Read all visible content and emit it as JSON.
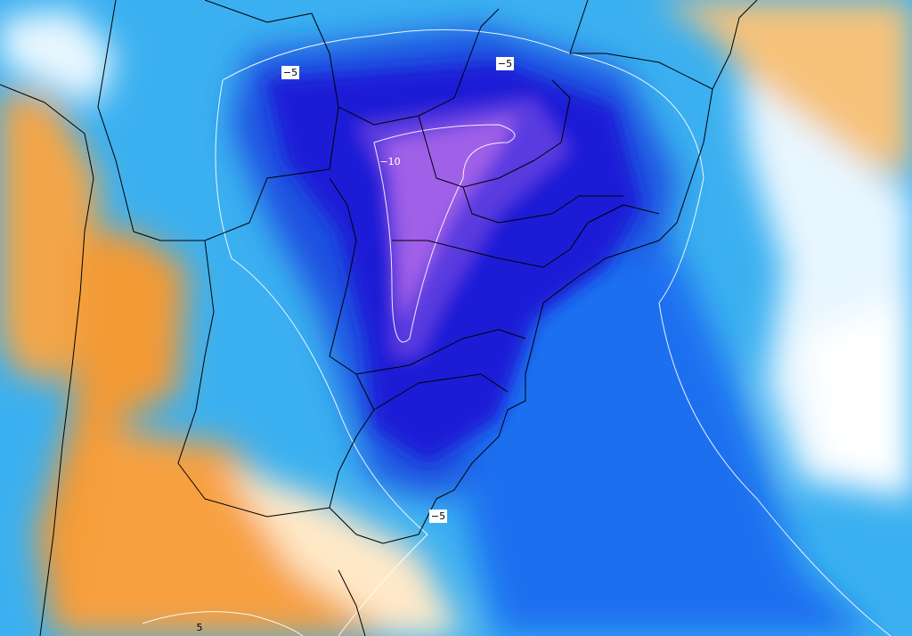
{
  "map": {
    "contour_labels": [
      "−5",
      "−5",
      "−10",
      "−5",
      "5"
    ]
  }
}
